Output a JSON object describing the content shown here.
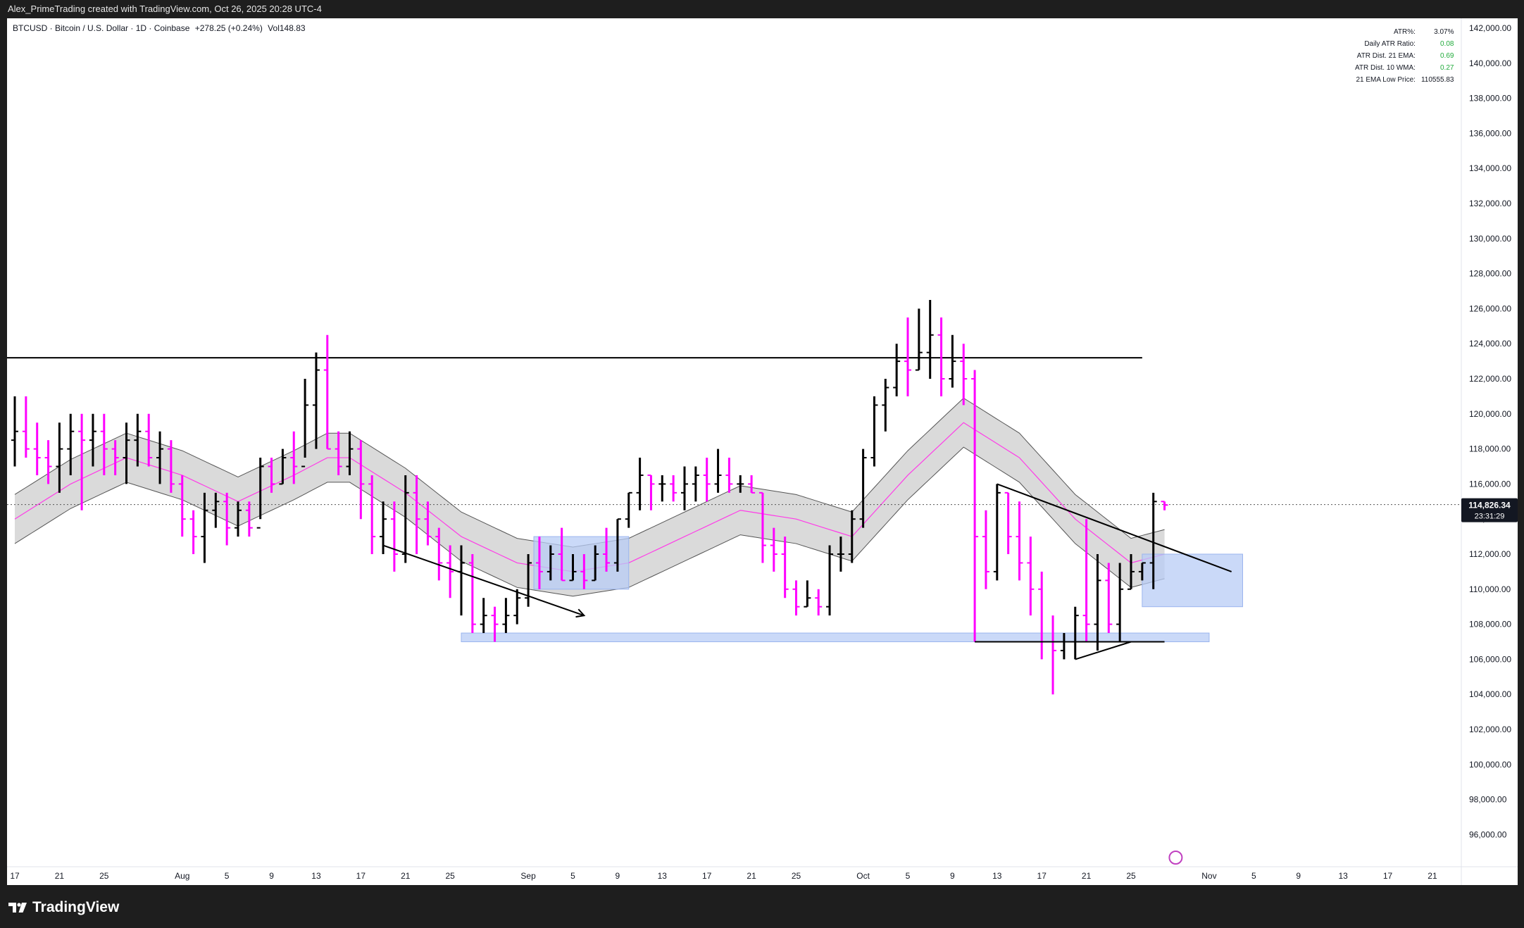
{
  "header": {
    "attribution": "Alex_PrimeTrading created with TradingView.com, Oct 26, 2025 20:28 UTC-4"
  },
  "symbol": {
    "name": "BTCUSD · Bitcoin / U.S. Dollar · 1D · Coinbase",
    "change": "+278.25 (+0.24%)",
    "volume": "Vol148.83"
  },
  "stats_table": [
    {
      "label": "ATR%:",
      "value": "3.07%",
      "color": "#131722"
    },
    {
      "label": "Daily ATR Ratio:",
      "value": "0.08",
      "color": "#22ab3c"
    },
    {
      "label": "ATR Dist. 21 EMA:",
      "value": "0.69",
      "color": "#22ab3c"
    },
    {
      "label": "ATR Dist. 10 WMA:",
      "value": "0.27",
      "color": "#22ab3c"
    },
    {
      "label": "21 EMA Low Price:",
      "value": "110555.83",
      "color": "#131722"
    }
  ],
  "price_label": {
    "price": "114,826.34",
    "countdown": "23:31:29"
  },
  "footer": {
    "brand": "TradingView"
  },
  "colors": {
    "up_bar": "#000000",
    "down_bar": "#ff00ff",
    "ema": "#ff3ce8",
    "band": "#d4d4d4",
    "zone": "#b8ccf5"
  },
  "chart_data": {
    "type": "ohlc",
    "title": "BTCUSD · Bitcoin / U.S. Dollar · 1D · Coinbase",
    "yaxis_ticks": [
      "142,000.00",
      "140,000.00",
      "138,000.00",
      "136,000.00",
      "134,000.00",
      "132,000.00",
      "130,000.00",
      "128,000.00",
      "126,000.00",
      "124,000.00",
      "122,000.00",
      "120,000.00",
      "118,000.00",
      "116,000.00",
      "114,000.00",
      "112,000.00",
      "110,000.00",
      "108,000.00",
      "106,000.00",
      "104,000.00",
      "102,000.00",
      "100,000.00",
      "98,000.00",
      "96,000.00"
    ],
    "ylim": [
      94000,
      143000
    ],
    "xaxis_ticks": [
      {
        "day": 0,
        "label": "17"
      },
      {
        "day": 4,
        "label": "21"
      },
      {
        "day": 8,
        "label": "25"
      },
      {
        "day": 15,
        "label": "Aug"
      },
      {
        "day": 19,
        "label": "5"
      },
      {
        "day": 23,
        "label": "9"
      },
      {
        "day": 27,
        "label": "13"
      },
      {
        "day": 31,
        "label": "17"
      },
      {
        "day": 35,
        "label": "21"
      },
      {
        "day": 39,
        "label": "25"
      },
      {
        "day": 46,
        "label": "Sep"
      },
      {
        "day": 50,
        "label": "5"
      },
      {
        "day": 54,
        "label": "9"
      },
      {
        "day": 58,
        "label": "13"
      },
      {
        "day": 62,
        "label": "17"
      },
      {
        "day": 66,
        "label": "21"
      },
      {
        "day": 70,
        "label": "25"
      },
      {
        "day": 76,
        "label": "Oct"
      },
      {
        "day": 80,
        "label": "5"
      },
      {
        "day": 84,
        "label": "9"
      },
      {
        "day": 88,
        "label": "13"
      },
      {
        "day": 92,
        "label": "17"
      },
      {
        "day": 96,
        "label": "21"
      },
      {
        "day": 100,
        "label": "25"
      },
      {
        "day": 107,
        "label": "Nov"
      },
      {
        "day": 111,
        "label": "5"
      },
      {
        "day": 115,
        "label": "9"
      },
      {
        "day": 119,
        "label": "13"
      },
      {
        "day": 123,
        "label": "17"
      },
      {
        "day": 127,
        "label": "21"
      }
    ],
    "bars": [
      [
        0,
        118500,
        121000,
        117000,
        119000
      ],
      [
        1,
        119000,
        121000,
        117500,
        118000
      ],
      [
        2,
        118000,
        119500,
        116500,
        117500
      ],
      [
        3,
        117500,
        118500,
        116000,
        117000
      ],
      [
        4,
        117000,
        119500,
        115500,
        118000
      ],
      [
        5,
        118000,
        120000,
        116500,
        119000
      ],
      [
        6,
        119000,
        120000,
        114500,
        118500
      ],
      [
        7,
        118500,
        120000,
        117000,
        119000
      ],
      [
        8,
        119000,
        120000,
        116500,
        118000
      ],
      [
        9,
        118000,
        118500,
        116500,
        117500
      ],
      [
        10,
        117500,
        119500,
        116000,
        118500
      ],
      [
        11,
        118500,
        120000,
        117000,
        119000
      ],
      [
        12,
        119000,
        120000,
        117000,
        117500
      ],
      [
        13,
        117500,
        119000,
        116000,
        118000
      ],
      [
        14,
        118000,
        118500,
        115500,
        116000
      ],
      [
        15,
        116000,
        116500,
        113000,
        114000
      ],
      [
        16,
        114000,
        114500,
        112000,
        113000
      ],
      [
        17,
        113000,
        115500,
        111500,
        114500
      ],
      [
        18,
        114500,
        115500,
        113500,
        115000
      ],
      [
        19,
        115000,
        115500,
        112500,
        113500
      ],
      [
        20,
        113500,
        115000,
        113000,
        114500
      ],
      [
        21,
        114500,
        115000,
        113000,
        113500
      ],
      [
        22,
        113500,
        117500,
        114000,
        117000
      ],
      [
        23,
        117000,
        117500,
        115500,
        116000
      ],
      [
        24,
        116000,
        118000,
        116000,
        117500
      ],
      [
        25,
        117500,
        119000,
        116000,
        117000
      ],
      [
        26,
        117000,
        122000,
        117500,
        120500
      ],
      [
        27,
        120500,
        123500,
        118000,
        122500
      ],
      [
        28,
        122500,
        124500,
        118000,
        118000
      ],
      [
        29,
        118000,
        119000,
        116500,
        117000
      ],
      [
        30,
        117000,
        119000,
        116500,
        118000
      ],
      [
        31,
        118000,
        118500,
        114000,
        116000
      ],
      [
        32,
        116000,
        116500,
        112000,
        113000
      ],
      [
        33,
        113000,
        115000,
        112000,
        114000
      ],
      [
        34,
        114000,
        115000,
        111000,
        112000
      ],
      [
        35,
        112000,
        116500,
        111500,
        115500
      ],
      [
        36,
        115500,
        116500,
        112000,
        114000
      ],
      [
        37,
        114000,
        115000,
        112500,
        113000
      ],
      [
        38,
        113000,
        113500,
        110500,
        111500
      ],
      [
        39,
        111500,
        112500,
        109500,
        111000
      ],
      [
        40,
        111000,
        112500,
        108500,
        111500
      ],
      [
        41,
        111500,
        112000,
        107500,
        108000
      ],
      [
        42,
        108000,
        109500,
        107500,
        108500
      ],
      [
        43,
        108500,
        109000,
        107000,
        108000
      ],
      [
        44,
        108000,
        109500,
        107500,
        108500
      ],
      [
        45,
        108500,
        110000,
        108000,
        109500
      ],
      [
        46,
        109500,
        112000,
        109000,
        111500
      ],
      [
        47,
        111500,
        113000,
        110000,
        111000
      ],
      [
        48,
        111000,
        112500,
        110500,
        112000
      ],
      [
        49,
        112000,
        113500,
        110500,
        110500
      ],
      [
        50,
        110500,
        112000,
        110500,
        111000
      ],
      [
        51,
        111000,
        112000,
        110000,
        110500
      ],
      [
        52,
        110500,
        112500,
        110500,
        112000
      ],
      [
        53,
        112000,
        113500,
        111000,
        111500
      ],
      [
        54,
        111500,
        114000,
        111000,
        114000
      ],
      [
        55,
        114000,
        115500,
        113500,
        115500
      ],
      [
        56,
        115500,
        117500,
        114500,
        116500
      ],
      [
        57,
        116500,
        116500,
        114500,
        116000
      ],
      [
        58,
        116000,
        116500,
        115000,
        116000
      ],
      [
        59,
        116000,
        116500,
        115000,
        115500
      ],
      [
        60,
        115500,
        117000,
        114500,
        116000
      ],
      [
        61,
        116000,
        117000,
        115000,
        116500
      ],
      [
        62,
        116500,
        117500,
        115000,
        116000
      ],
      [
        63,
        116000,
        118000,
        115500,
        116500
      ],
      [
        64,
        116500,
        117500,
        115500,
        116000
      ],
      [
        65,
        116000,
        116500,
        115500,
        116000
      ],
      [
        66,
        116000,
        116500,
        115500,
        115500
      ],
      [
        67,
        115500,
        115500,
        111500,
        112500
      ],
      [
        68,
        112500,
        113500,
        111000,
        112000
      ],
      [
        69,
        112000,
        113000,
        109500,
        110000
      ],
      [
        70,
        110000,
        110500,
        108500,
        109000
      ],
      [
        71,
        109000,
        110500,
        109000,
        109500
      ],
      [
        72,
        109500,
        110000,
        108500,
        109000
      ],
      [
        73,
        109000,
        112500,
        108500,
        112000
      ],
      [
        74,
        112000,
        113000,
        111000,
        112000
      ],
      [
        75,
        112000,
        114500,
        111500,
        114000
      ],
      [
        76,
        114000,
        118000,
        113500,
        117500
      ],
      [
        77,
        117500,
        121000,
        117000,
        120500
      ],
      [
        78,
        120500,
        122000,
        119000,
        121500
      ],
      [
        79,
        121500,
        124000,
        121000,
        123000
      ],
      [
        80,
        123000,
        125500,
        121000,
        122500
      ],
      [
        81,
        122500,
        126000,
        122500,
        123500
      ],
      [
        82,
        123500,
        126500,
        122000,
        124500
      ],
      [
        83,
        124500,
        125500,
        121000,
        122000
      ],
      [
        84,
        122000,
        124500,
        121500,
        123000
      ],
      [
        85,
        123000,
        124000,
        120500,
        122000
      ],
      [
        86,
        122000,
        122500,
        107000,
        113000
      ],
      [
        87,
        113000,
        114500,
        110000,
        111000
      ],
      [
        88,
        111000,
        116000,
        110500,
        115500
      ],
      [
        89,
        115500,
        115500,
        112000,
        113000
      ],
      [
        90,
        113000,
        115000,
        110500,
        111500
      ],
      [
        91,
        111500,
        113000,
        108500,
        110000
      ],
      [
        92,
        110000,
        111000,
        106000,
        107000
      ],
      [
        93,
        107000,
        108500,
        104000,
        106500
      ],
      [
        94,
        106500,
        107500,
        106000,
        107000
      ],
      [
        95,
        107000,
        109000,
        106000,
        108500
      ],
      [
        96,
        108500,
        114000,
        107000,
        108000
      ],
      [
        97,
        108000,
        112000,
        106500,
        110500
      ],
      [
        98,
        110500,
        111500,
        107500,
        108000
      ],
      [
        99,
        108000,
        111500,
        107000,
        110000
      ],
      [
        100,
        110000,
        112000,
        110000,
        111000
      ],
      [
        101,
        111000,
        111500,
        110500,
        111500
      ],
      [
        102,
        111500,
        115500,
        110000,
        115000
      ],
      [
        103,
        115000,
        115000,
        114500,
        114800
      ]
    ],
    "ema21": [
      [
        0,
        114000
      ],
      [
        5,
        116000
      ],
      [
        10,
        117500
      ],
      [
        15,
        116500
      ],
      [
        20,
        115000
      ],
      [
        25,
        116500
      ],
      [
        28,
        117500
      ],
      [
        30,
        117500
      ],
      [
        35,
        115500
      ],
      [
        40,
        113000
      ],
      [
        45,
        111500
      ],
      [
        50,
        111000
      ],
      [
        55,
        111500
      ],
      [
        60,
        113000
      ],
      [
        65,
        114500
      ],
      [
        70,
        114000
      ],
      [
        75,
        113000
      ],
      [
        80,
        116500
      ],
      [
        85,
        119500
      ],
      [
        90,
        117500
      ],
      [
        95,
        114000
      ],
      [
        100,
        111500
      ],
      [
        103,
        112000
      ]
    ],
    "band_half_width": 1400,
    "horizontal_lines": [
      123200,
      114826.34
    ],
    "zones": [
      {
        "x0": 46.5,
        "x1": 55,
        "y0": 110000,
        "y1": 113000
      },
      {
        "x0": 40,
        "x1": 107,
        "y0": 107000,
        "y1": 107500
      },
      {
        "x0": 101,
        "x1": 110,
        "y0": 109000,
        "y1": 112000
      }
    ],
    "trendlines": [
      {
        "x0": 33,
        "y0": 112500,
        "x1": 51,
        "y1": 108500,
        "arrow": true
      },
      {
        "x0": 88,
        "y0": 116000,
        "x1": 109,
        "y1": 111000,
        "arrow": false
      },
      {
        "x0": 95,
        "y0": 106000,
        "x1": 100,
        "y1": 107000,
        "arrow": false
      },
      {
        "x0": 86,
        "y0": 107000,
        "x1": 103,
        "y1": 107000,
        "arrow": false
      }
    ]
  }
}
